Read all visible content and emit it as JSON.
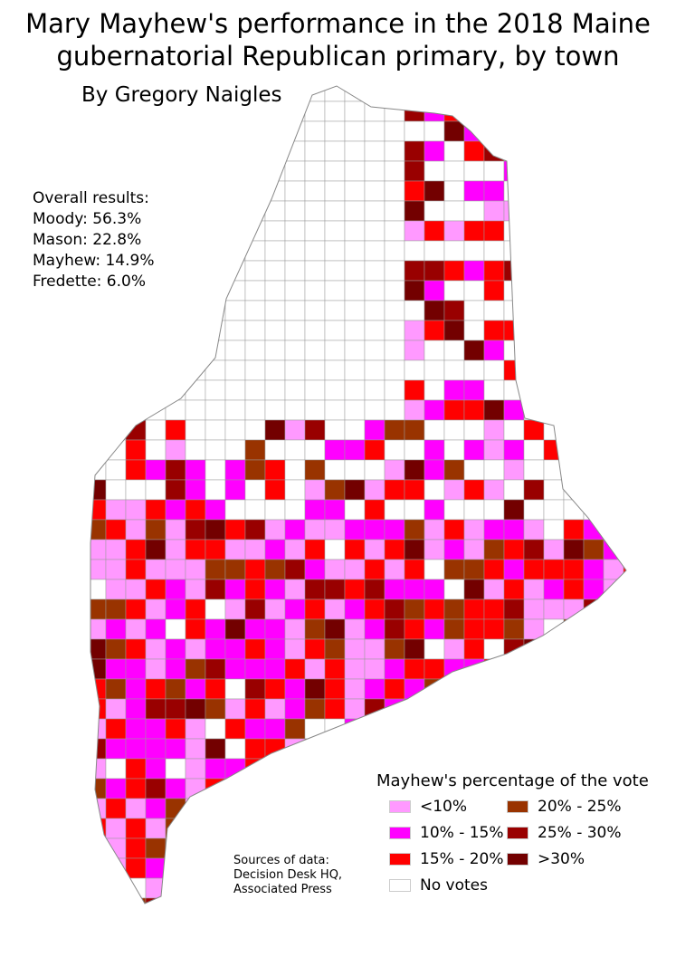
{
  "title_line1": "Mary Mayhew's performance in the 2018 Maine",
  "title_line2": "gubernatorial Republican primary, by town",
  "author": "By Gregory Naigles",
  "overall": {
    "heading": "Overall results:",
    "lines": [
      "Moody: 56.3%",
      "Mason: 22.8%",
      "Mayhew: 14.9%",
      "Fredette: 6.0%"
    ]
  },
  "legend": {
    "title": "Mayhew's percentage of the vote",
    "items": [
      {
        "label": "<10%",
        "color": "#ff99ff"
      },
      {
        "label": "20% - 25%",
        "color": "#993300"
      },
      {
        "label": "10% - 15%",
        "color": "#ff00ff"
      },
      {
        "label": "25% - 30%",
        "color": "#990000"
      },
      {
        "label": "15% - 20%",
        "color": "#ff0000"
      },
      {
        "label": ">30%",
        "color": "#730000"
      },
      {
        "label": "No votes",
        "color": "#ffffff"
      }
    ]
  },
  "sources": [
    "Sources of data:",
    "Decision Desk HQ,",
    "Associated Press"
  ]
}
